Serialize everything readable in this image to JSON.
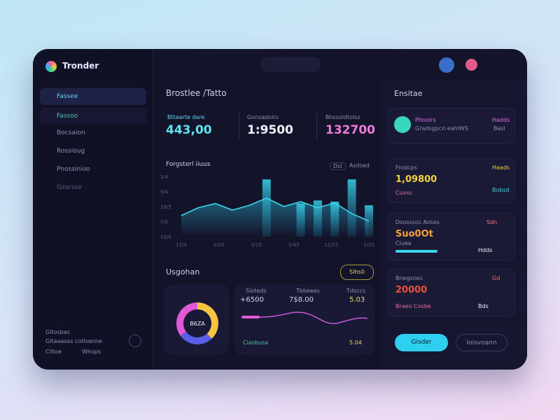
{
  "brand": "Tronder",
  "sidebar": {
    "items": [
      "Fassee",
      "Fassoo",
      "Bocsaion",
      "Rossioug",
      "Pnossinioo",
      "Gzarsse"
    ],
    "footer": [
      "Gitosbas",
      "Gitaaasas cotlsenne",
      "Ciltoe",
      "Whops"
    ]
  },
  "header": {
    "title": "Brostlee /Tatto"
  },
  "stats": [
    {
      "label": "Bttaarte dare",
      "value": "443,00"
    },
    {
      "label": "Gonsadoirs",
      "value": "1:9500"
    },
    {
      "label": "Bhssoldtolsz",
      "value": "132700"
    }
  ],
  "performance": {
    "title": "Forgsterl iiuus",
    "badge": "Dsl",
    "action": "Asdsed",
    "ylabels": [
      "1/4",
      "9/4",
      "10/5",
      "7/0",
      "10/5"
    ],
    "xlabels": [
      "12/3",
      "1/20",
      "3/15",
      "1/45",
      "12/15",
      "1/20"
    ],
    "ylim": [
      0,
      100
    ],
    "line": [
      35,
      48,
      55,
      44,
      52,
      64,
      50,
      58,
      48,
      56,
      38,
      26
    ],
    "bars": [
      null,
      null,
      null,
      null,
      null,
      95,
      null,
      55,
      60,
      58,
      95,
      52
    ]
  },
  "usage": {
    "title": "Usgohan",
    "button": "Sihs0",
    "donut_center": "B6ZA",
    "donut": [
      38,
      27,
      35
    ],
    "labels": [
      "Sloteds",
      "Tbbeees",
      "Tdsccs"
    ],
    "values": [
      "+6500",
      "7$8.00",
      "5.03"
    ],
    "footer": [
      "Ciasbusa",
      "5.04"
    ]
  },
  "right": {
    "title": "Ensitae",
    "profile": {
      "name": "Phnoirs",
      "sub": "Gradsgpcn eahlWS",
      "tag": "Hadds",
      "tag2": "Basl"
    },
    "cards": [
      {
        "label": "Frodcps",
        "value": "1,09800",
        "foot": "Cuxss",
        "side": [
          "Haads",
          "Bobsd"
        ]
      },
      {
        "label": "Dsosssos Aoses",
        "value": "Suo0Ot",
        "foot": "Ciuea",
        "side": [
          "Sdn",
          "Hdds"
        ]
      },
      {
        "label": "Bnegsnes",
        "value": "20000",
        "foot": "Braeo Cosbe",
        "side": [
          "Gd",
          "Bds"
        ]
      }
    ],
    "buttons": [
      "Gisder",
      "Ioisvoann"
    ]
  }
}
